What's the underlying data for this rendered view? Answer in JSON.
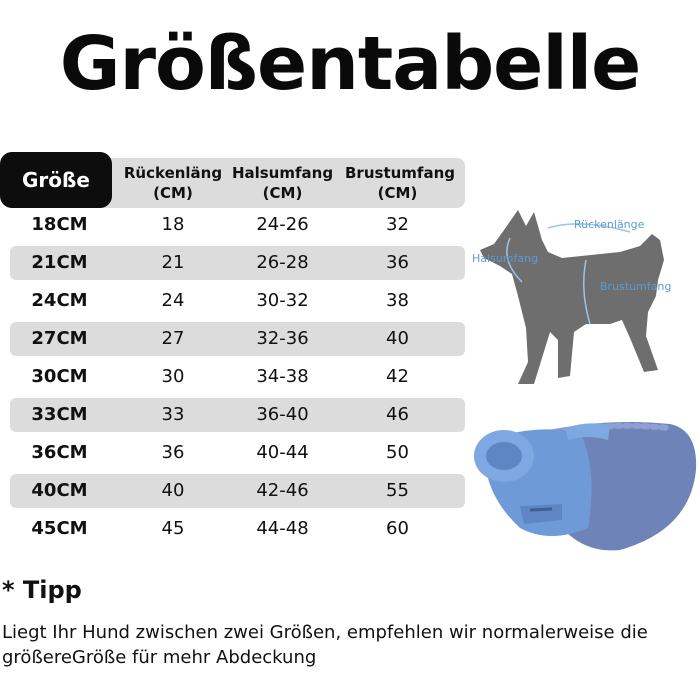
{
  "title": "Größentabelle",
  "table": {
    "headers": [
      "Größe",
      "Rückenläng\n(CM)",
      "Halsumfang\n(CM)",
      "Brustumfang\n(CM)"
    ],
    "header_lines": [
      [
        "Größe"
      ],
      [
        "Rückenläng",
        "(CM)"
      ],
      [
        "Halsumfang",
        "(CM)"
      ],
      [
        "Brustumfang",
        "(CM)"
      ]
    ],
    "rows": [
      {
        "size": "18CM",
        "back": "18",
        "neck": "24-26",
        "chest": "32"
      },
      {
        "size": "21CM",
        "back": "21",
        "neck": "26-28",
        "chest": "36"
      },
      {
        "size": "24CM",
        "back": "24",
        "neck": "30-32",
        "chest": "38"
      },
      {
        "size": "27CM",
        "back": "27",
        "neck": "32-36",
        "chest": "40"
      },
      {
        "size": "30CM",
        "back": "30",
        "neck": "34-38",
        "chest": "42"
      },
      {
        "size": "33CM",
        "back": "33",
        "neck": "36-40",
        "chest": "46"
      },
      {
        "size": "36CM",
        "back": "36",
        "neck": "40-44",
        "chest": "50"
      },
      {
        "size": "40CM",
        "back": "40",
        "neck": "42-46",
        "chest": "55"
      },
      {
        "size": "45CM",
        "back": "45",
        "neck": "44-48",
        "chest": "60"
      }
    ]
  },
  "diagram": {
    "labels": {
      "back": "Rückenlänge",
      "neck": "Halsumfang",
      "chest": "Brustumfang"
    }
  },
  "tipp": {
    "heading": "* Tipp",
    "text": "Liegt Ihr Hund zwischen zwei Größen, empfehlen wir normalerweise die größereGröße für mehr Abdeckung"
  },
  "colors": {
    "shade": "#dcdcdc",
    "header_dark": "#0d0d0d",
    "label_blue": "#5b9bd5",
    "dog_gray": "#6e6e6e",
    "coat_blue": "#6f9ad8"
  }
}
